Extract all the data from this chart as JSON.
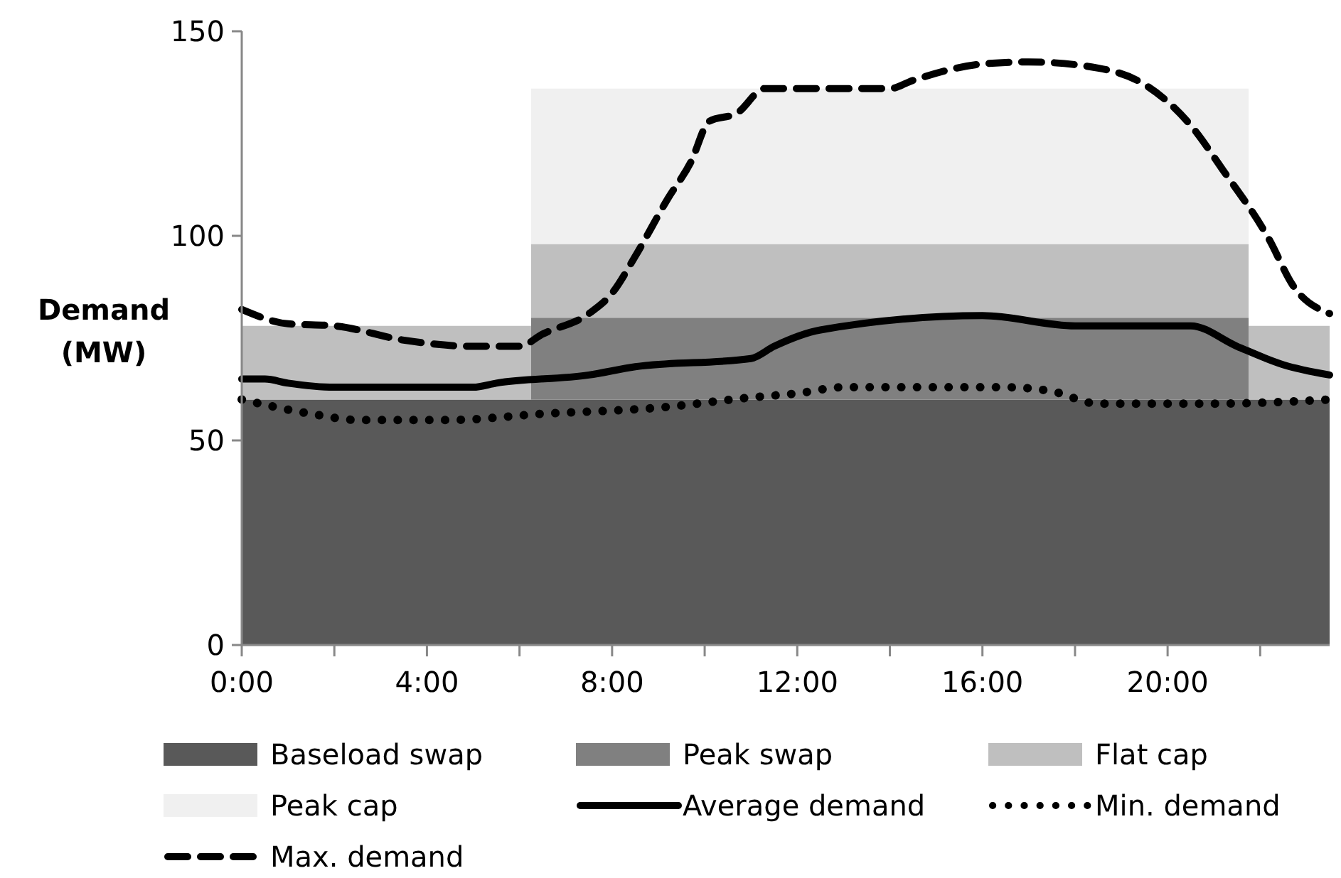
{
  "chart_data": {
    "type": "area",
    "stacked": true,
    "ylabel": "Demand (MW)",
    "xlim": [
      0,
      23.5
    ],
    "ylim": [
      0,
      150
    ],
    "yticks": [
      0,
      50,
      100,
      150
    ],
    "xticks": [
      {
        "value": 0,
        "label": "0:00"
      },
      {
        "value": 2,
        "label": null
      },
      {
        "value": 4,
        "label": "4:00"
      },
      {
        "value": 6,
        "label": null
      },
      {
        "value": 8,
        "label": "8:00"
      },
      {
        "value": 10,
        "label": null
      },
      {
        "value": 12,
        "label": "12:00"
      },
      {
        "value": 14,
        "label": null
      },
      {
        "value": 16,
        "label": "16:00"
      },
      {
        "value": 18,
        "label": null
      },
      {
        "value": 20,
        "label": "20:00"
      },
      {
        "value": 22,
        "label": null
      }
    ],
    "grid": false,
    "legend": "bottom",
    "series": [
      {
        "name": "Baseload swap",
        "color": "#595959",
        "x": [
          0,
          6.25,
          6.25,
          21.75,
          21.75,
          23.5
        ],
        "values": [
          60,
          60,
          60,
          60,
          60,
          60
        ]
      },
      {
        "name": "Peak swap",
        "color": "#808080",
        "x": [
          0,
          6.25,
          6.25,
          21.75,
          21.75,
          23.5
        ],
        "values": [
          0,
          0,
          20,
          20,
          0,
          0
        ]
      },
      {
        "name": "Flat cap",
        "color": "#bfbfbf",
        "x": [
          0,
          6.25,
          6.25,
          21.75,
          21.75,
          23.5
        ],
        "values": [
          18,
          18,
          18,
          18,
          18,
          18
        ]
      },
      {
        "name": "Peak cap",
        "color": "#f0f0f0",
        "x": [
          0,
          6.25,
          6.25,
          21.75,
          21.75,
          23.5
        ],
        "values": [
          0,
          0,
          38,
          38,
          0,
          0
        ]
      },
      {
        "name": "Average demand",
        "type": "line",
        "line_style": "solid",
        "color": "#000000",
        "x": [
          0,
          0.5,
          1,
          2,
          5,
          5.5,
          7.5,
          8.5,
          11,
          11.5,
          12.5,
          16,
          18,
          20.5,
          21.5,
          22.5,
          23.5
        ],
        "values": [
          65,
          65,
          64,
          63,
          63,
          64,
          66,
          68,
          70,
          73,
          77,
          80.5,
          78,
          78,
          73,
          68.5,
          66
        ]
      },
      {
        "name": "Min. demand",
        "type": "line",
        "line_style": "dotted",
        "color": "#000000",
        "x": [
          0,
          1.5,
          2.5,
          4.5,
          6.5,
          9,
          11,
          12,
          13,
          16.5,
          17.5,
          18.5,
          21,
          23.5
        ],
        "values": [
          60,
          56.5,
          55,
          55,
          56.5,
          58,
          60.5,
          61.5,
          63,
          63,
          62,
          59,
          59,
          60
        ]
      },
      {
        "name": "Max. demand",
        "type": "line",
        "line_style": "dashed",
        "color": "#000000",
        "x": [
          0,
          1,
          2,
          3.5,
          5,
          6,
          6.5,
          7.5,
          8,
          8.5,
          9.2,
          9.7,
          10.1,
          10.7,
          11.3,
          14,
          14.5,
          16,
          17,
          18.5,
          19.5,
          20.5,
          21.2,
          22.2,
          22.7,
          23.5
        ],
        "values": [
          82,
          78.5,
          78,
          74.5,
          73,
          73,
          76,
          81,
          86,
          95,
          109,
          118,
          128,
          130,
          136,
          136,
          138,
          142,
          142.5,
          141,
          137,
          127,
          116,
          99,
          88,
          81
        ]
      }
    ]
  }
}
